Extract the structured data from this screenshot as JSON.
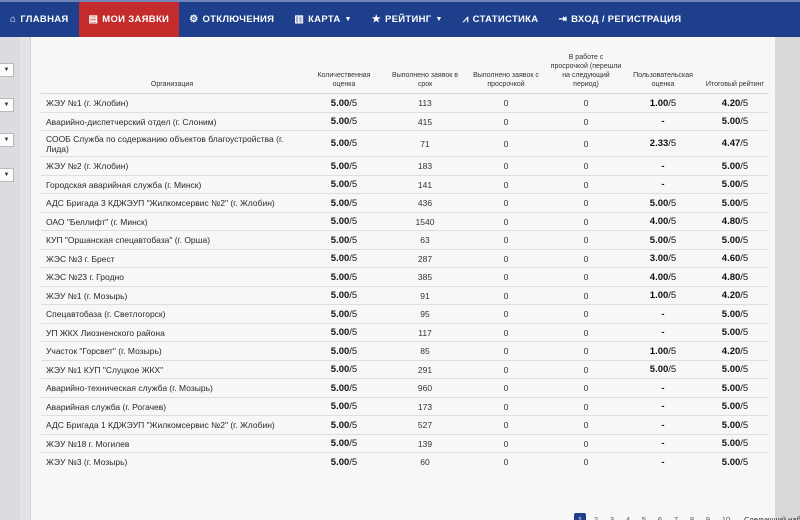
{
  "nav": {
    "home": "ГЛАВНАЯ",
    "my_requests": "МОИ ЗАЯВКИ",
    "outages": "ОТКЛЮЧЕНИЯ",
    "map": "КАРТА",
    "rating": "РЕЙТИНГ",
    "statistics": "СТАТИСТИКА",
    "login": "ВХОД / РЕГИСТРАЦИЯ"
  },
  "colors": {
    "navbar": "#1d3f8c",
    "active_tab": "#c42b2b"
  },
  "table": {
    "headers": {
      "org": "Организация",
      "qty": "Количественная оценка",
      "ontime": "Выполнено заявок в срок",
      "late": "Выполнено заявок с просрочкой",
      "inwork": "В работе с просрочкой (перешли на следующий период)",
      "user": "Пользовательская оценка",
      "final": "Итоговый рейтинг"
    },
    "rows": [
      {
        "org": "ЖЭУ №1 (г. Жлобин)",
        "qty": "5.00",
        "ontime": "113",
        "late": "0",
        "inwork": "0",
        "user": "1.00",
        "final": "4.20"
      },
      {
        "org": "Аварийно-диспетчерский отдел (г. Слоним)",
        "qty": "5.00",
        "ontime": "415",
        "late": "0",
        "inwork": "0",
        "user": "-",
        "final": "5.00"
      },
      {
        "org": "СООБ Служба по содержанию объектов благоустройства (г. Лида)",
        "qty": "5.00",
        "ontime": "71",
        "late": "0",
        "inwork": "0",
        "user": "2.33",
        "final": "4.47"
      },
      {
        "org": "ЖЭУ №2 (г. Жлобин)",
        "qty": "5.00",
        "ontime": "183",
        "late": "0",
        "inwork": "0",
        "user": "-",
        "final": "5.00"
      },
      {
        "org": "Городская аварийная служба (г. Минск)",
        "qty": "5.00",
        "ontime": "141",
        "late": "0",
        "inwork": "0",
        "user": "-",
        "final": "5.00"
      },
      {
        "org": "АДС Бригада 3 КДЖЭУП \"Жилкомсервис №2\" (г. Жлобин)",
        "qty": "5.00",
        "ontime": "436",
        "late": "0",
        "inwork": "0",
        "user": "5.00",
        "final": "5.00"
      },
      {
        "org": "ОАО \"Беллифт\" (г. Минск)",
        "qty": "5.00",
        "ontime": "1540",
        "late": "0",
        "inwork": "0",
        "user": "4.00",
        "final": "4.80"
      },
      {
        "org": "КУП \"Оршанская спецавтобаза\" (г. Орша)",
        "qty": "5.00",
        "ontime": "63",
        "late": "0",
        "inwork": "0",
        "user": "5.00",
        "final": "5.00"
      },
      {
        "org": "ЖЭС №3 г. Брест",
        "qty": "5.00",
        "ontime": "287",
        "late": "0",
        "inwork": "0",
        "user": "3.00",
        "final": "4.60"
      },
      {
        "org": "ЖЭС №23 г. Гродно",
        "qty": "5.00",
        "ontime": "385",
        "late": "0",
        "inwork": "0",
        "user": "4.00",
        "final": "4.80"
      },
      {
        "org": "ЖЭУ №1 (г. Мозырь)",
        "qty": "5.00",
        "ontime": "91",
        "late": "0",
        "inwork": "0",
        "user": "1.00",
        "final": "4.20"
      },
      {
        "org": "Спецавтобаза (г. Светлогорск)",
        "qty": "5.00",
        "ontime": "95",
        "late": "0",
        "inwork": "0",
        "user": "-",
        "final": "5.00"
      },
      {
        "org": "УП ЖКХ Лиозненского района",
        "qty": "5.00",
        "ontime": "117",
        "late": "0",
        "inwork": "0",
        "user": "-",
        "final": "5.00"
      },
      {
        "org": "Участок \"Горсвет\" (г. Мозырь)",
        "qty": "5.00",
        "ontime": "85",
        "late": "0",
        "inwork": "0",
        "user": "1.00",
        "final": "4.20"
      },
      {
        "org": "ЖЭУ №1 КУП \"Слуцкое ЖКХ\"",
        "qty": "5.00",
        "ontime": "291",
        "late": "0",
        "inwork": "0",
        "user": "5.00",
        "final": "5.00"
      },
      {
        "org": "Аварийно-техническая служба (г. Мозырь)",
        "qty": "5.00",
        "ontime": "960",
        "late": "0",
        "inwork": "0",
        "user": "-",
        "final": "5.00"
      },
      {
        "org": "Аварийная служба (г. Рогачев)",
        "qty": "5.00",
        "ontime": "173",
        "late": "0",
        "inwork": "0",
        "user": "-",
        "final": "5.00"
      },
      {
        "org": "АДС Бригада 1 КДЖЭУП \"Жилкомсервис №2\" (г. Жлобин)",
        "qty": "5.00",
        "ontime": "527",
        "late": "0",
        "inwork": "0",
        "user": "-",
        "final": "5.00"
      },
      {
        "org": "ЖЭУ №18 г. Могилев",
        "qty": "5.00",
        "ontime": "139",
        "late": "0",
        "inwork": "0",
        "user": "-",
        "final": "5.00"
      },
      {
        "org": "ЖЭУ №3 (г. Мозырь)",
        "qty": "5.00",
        "ontime": "60",
        "late": "0",
        "inwork": "0",
        "user": "-",
        "final": "5.00"
      }
    ]
  },
  "pagination": {
    "pages": [
      "1",
      "2",
      "3",
      "4",
      "5",
      "6",
      "7",
      "8",
      "9",
      "10"
    ],
    "current": "1",
    "next": "Следующий набор"
  }
}
